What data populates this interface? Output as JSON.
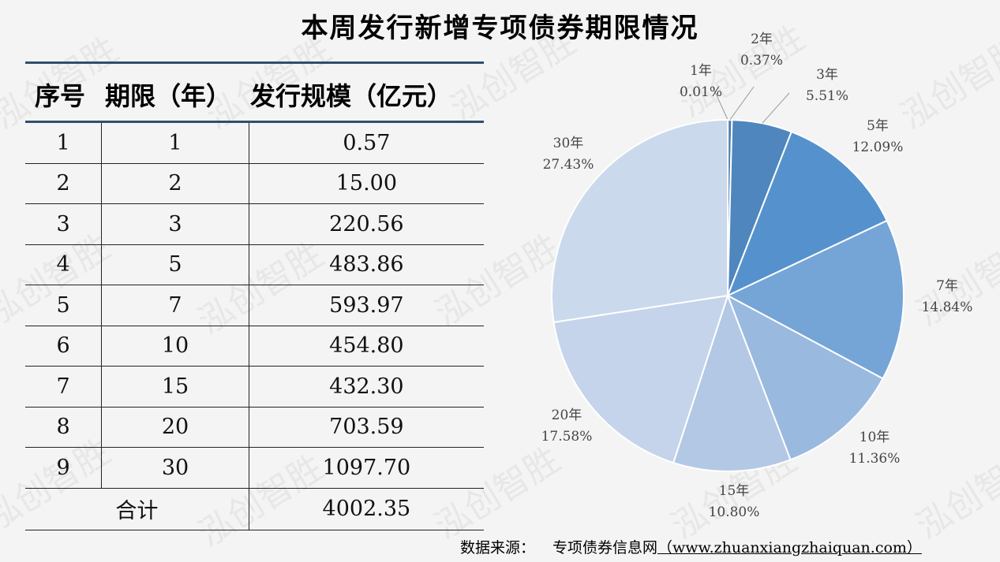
{
  "title": "本周发行新增专项债券期限情况",
  "table": {
    "headers": [
      "序号",
      "期限（年）",
      "发行规模（亿元）"
    ],
    "rows": [
      {
        "no": "1",
        "term": "1",
        "amount": "0.57"
      },
      {
        "no": "2",
        "term": "2",
        "amount": "15.00"
      },
      {
        "no": "3",
        "term": "3",
        "amount": "220.56"
      },
      {
        "no": "4",
        "term": "5",
        "amount": "483.86"
      },
      {
        "no": "5",
        "term": "7",
        "amount": "593.97"
      },
      {
        "no": "6",
        "term": "10",
        "amount": "454.80"
      },
      {
        "no": "7",
        "term": "15",
        "amount": "432.30"
      },
      {
        "no": "8",
        "term": "20",
        "amount": "703.59"
      },
      {
        "no": "9",
        "term": "30",
        "amount": "1097.70"
      }
    ],
    "total_label": "合计",
    "total_value": "4002.35"
  },
  "watermark": "泓创智胜",
  "source": {
    "label": "数据来源：",
    "name": "专项债券信息网",
    "url": "（www.zhuanxiangzhaiquan.com）"
  },
  "chart_data": {
    "type": "pie",
    "slices": [
      {
        "label": "1年",
        "value": 0.57,
        "percent": "0.01%",
        "color": "#7d9cc4"
      },
      {
        "label": "2年",
        "value": 15.0,
        "percent": "0.37%",
        "color": "#4f7fb0"
      },
      {
        "label": "3年",
        "value": 220.56,
        "percent": "5.51%",
        "color": "#4e86bd"
      },
      {
        "label": "5年",
        "value": 483.86,
        "percent": "12.09%",
        "color": "#5592cd"
      },
      {
        "label": "7年",
        "value": 593.97,
        "percent": "14.84%",
        "color": "#75a5d7"
      },
      {
        "label": "10年",
        "value": 454.8,
        "percent": "11.36%",
        "color": "#9ab9df"
      },
      {
        "label": "15年",
        "value": 432.3,
        "percent": "10.80%",
        "color": "#b3c8e4"
      },
      {
        "label": "20年",
        "value": 703.59,
        "percent": "17.58%",
        "color": "#c5d4ea"
      },
      {
        "label": "30年",
        "value": 1097.7,
        "percent": "27.43%",
        "color": "#cbd9ec"
      }
    ]
  }
}
